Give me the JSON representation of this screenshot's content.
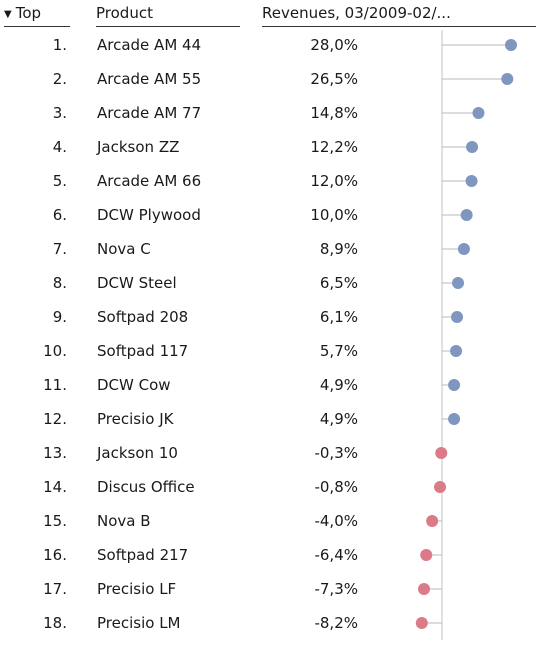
{
  "header": {
    "rank_label": "Top",
    "product_label": "Product",
    "value_label": "Revenues, 03/2009-02/..."
  },
  "colors": {
    "positive": "#7f97c0",
    "negative": "#db7b8a",
    "axis": "#c3c3c3"
  },
  "chart_data": {
    "type": "scatter",
    "xlabel": "",
    "ylabel": "Revenues, 03/2009-02/...",
    "rows": [
      {
        "rank": "1.",
        "product": "Arcade AM 44",
        "value_label": "28,0%",
        "value": 28.0
      },
      {
        "rank": "2.",
        "product": "Arcade AM 55",
        "value_label": "26,5%",
        "value": 26.5
      },
      {
        "rank": "3.",
        "product": "Arcade AM 77",
        "value_label": "14,8%",
        "value": 14.8
      },
      {
        "rank": "4.",
        "product": "Jackson ZZ",
        "value_label": "12,2%",
        "value": 12.2
      },
      {
        "rank": "5.",
        "product": "Arcade AM 66",
        "value_label": "12,0%",
        "value": 12.0
      },
      {
        "rank": "6.",
        "product": "DCW Plywood",
        "value_label": "10,0%",
        "value": 10.0
      },
      {
        "rank": "7.",
        "product": "Nova C",
        "value_label": "8,9%",
        "value": 8.9
      },
      {
        "rank": "8.",
        "product": "DCW Steel",
        "value_label": "6,5%",
        "value": 6.5
      },
      {
        "rank": "9.",
        "product": "Softpad 208",
        "value_label": "6,1%",
        "value": 6.1
      },
      {
        "rank": "10.",
        "product": "Softpad 117",
        "value_label": "5,7%",
        "value": 5.7
      },
      {
        "rank": "11.",
        "product": "DCW Cow",
        "value_label": "4,9%",
        "value": 4.9
      },
      {
        "rank": "12.",
        "product": "Precisio JK",
        "value_label": "4,9%",
        "value": 4.9
      },
      {
        "rank": "13.",
        "product": "Jackson 10",
        "value_label": "-0,3%",
        "value": -0.3
      },
      {
        "rank": "14.",
        "product": "Discus Office",
        "value_label": "-0,8%",
        "value": -0.8
      },
      {
        "rank": "15.",
        "product": "Nova B",
        "value_label": "-4,0%",
        "value": -4.0
      },
      {
        "rank": "16.",
        "product": "Softpad 217",
        "value_label": "-6,4%",
        "value": -6.4
      },
      {
        "rank": "17.",
        "product": "Precisio LF",
        "value_label": "-7,3%",
        "value": -7.3
      },
      {
        "rank": "18.",
        "product": "Precisio LM",
        "value_label": "-8,2%",
        "value": -8.2
      }
    ],
    "x_range": [
      -8.2,
      28.0
    ],
    "grid": false,
    "legend": "none"
  }
}
